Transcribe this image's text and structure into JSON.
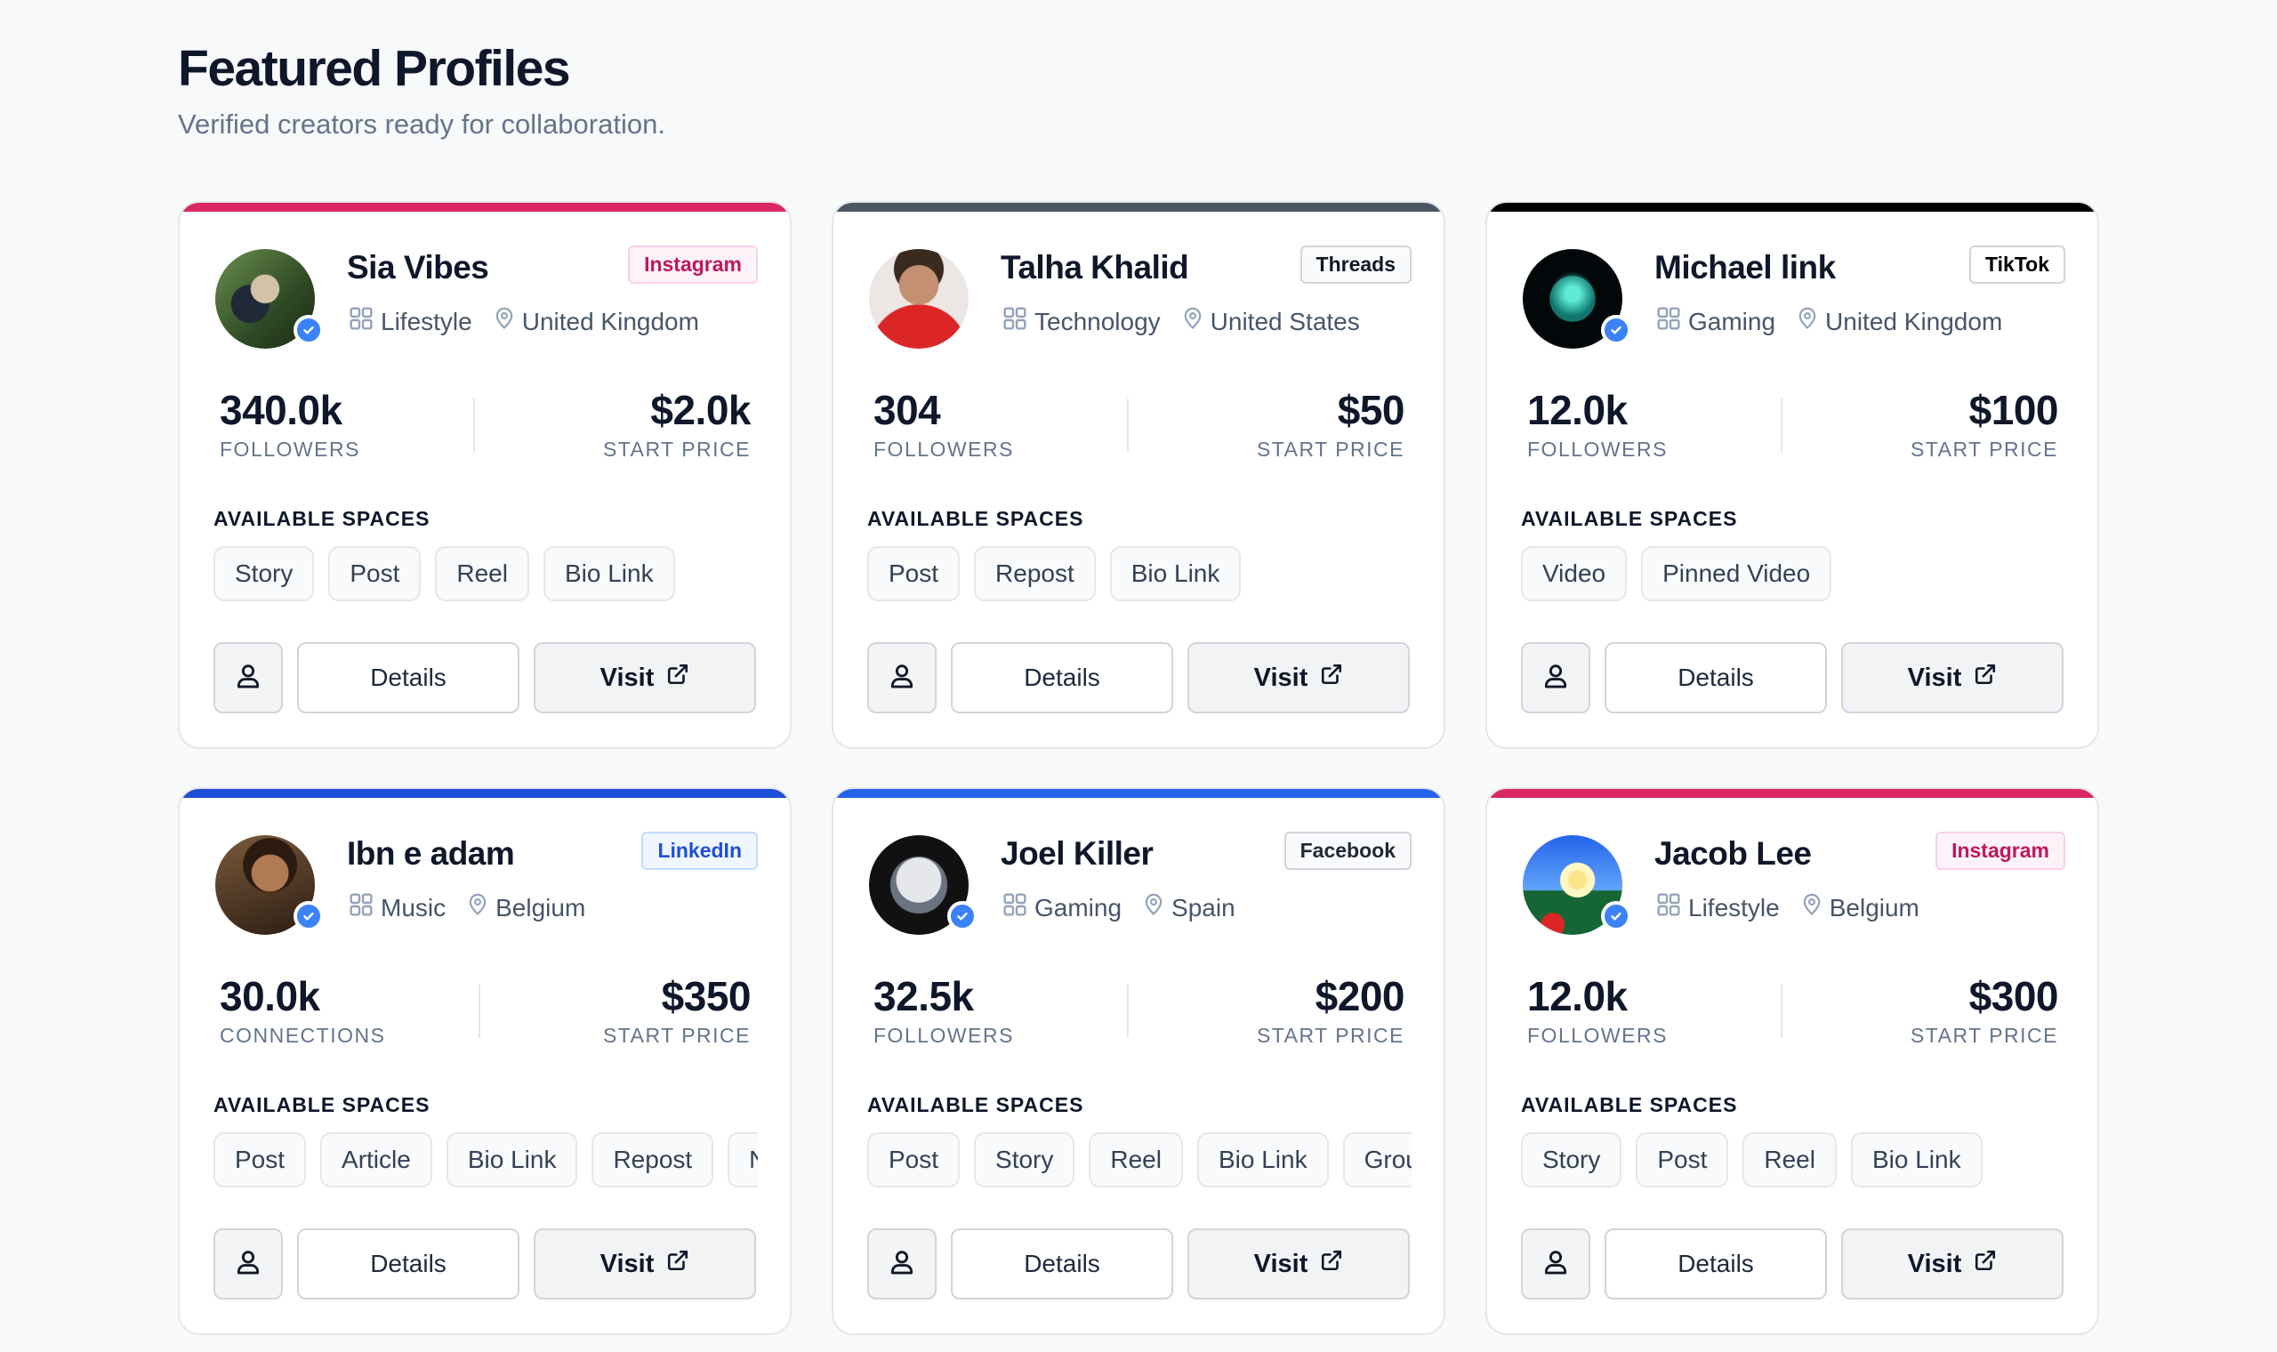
{
  "header": {
    "title": "Featured Profiles",
    "subtitle": "Verified creators ready for collaboration."
  },
  "common": {
    "spaces_title": "AVAILABLE SPACES",
    "price_label": "START PRICE",
    "details_label": "Details",
    "visit_label": "Visit",
    "profile_icon": "user-icon",
    "visit_icon": "external-link-icon",
    "category_icon": "grid-icon",
    "location_icon": "map-pin-icon",
    "verified_icon": "check-icon"
  },
  "cards": [
    {
      "name": "Sia Vibes",
      "platform": "Instagram",
      "accent": "#db2763",
      "category": "Lifestyle",
      "location": "United Kingdom",
      "audience": "340.0k",
      "audience_label": "FOLLOWERS",
      "price": "$2.0k",
      "verified": true,
      "spaces": [
        "Story",
        "Post",
        "Reel",
        "Bio Link"
      ]
    },
    {
      "name": "Talha Khalid",
      "platform": "Threads",
      "accent": "#4b5563",
      "category": "Technology",
      "location": "United States",
      "audience": "304",
      "audience_label": "FOLLOWERS",
      "price": "$50",
      "verified": false,
      "spaces": [
        "Post",
        "Repost",
        "Bio Link"
      ]
    },
    {
      "name": "Michael link",
      "platform": "TikTok",
      "accent": "#000000",
      "category": "Gaming",
      "location": "United Kingdom",
      "audience": "12.0k",
      "audience_label": "FOLLOWERS",
      "price": "$100",
      "verified": true,
      "spaces": [
        "Video",
        "Pinned Video"
      ]
    },
    {
      "name": "Ibn e adam",
      "platform": "LinkedIn",
      "accent": "#1d4ed8",
      "category": "Music",
      "location": "Belgium",
      "audience": "30.0k",
      "audience_label": "CONNECTIONS",
      "price": "$350",
      "verified": true,
      "spaces": [
        "Post",
        "Article",
        "Bio Link",
        "Repost",
        "N"
      ]
    },
    {
      "name": "Joel Killer",
      "platform": "Facebook",
      "accent": "#2563eb",
      "category": "Gaming",
      "location": "Spain",
      "audience": "32.5k",
      "audience_label": "FOLLOWERS",
      "price": "$200",
      "verified": true,
      "spaces": [
        "Post",
        "Story",
        "Reel",
        "Bio Link",
        "Grou"
      ]
    },
    {
      "name": "Jacob Lee",
      "platform": "Instagram",
      "accent": "#db2763",
      "category": "Lifestyle",
      "location": "Belgium",
      "audience": "12.0k",
      "audience_label": "FOLLOWERS",
      "price": "$300",
      "verified": true,
      "spaces": [
        "Story",
        "Post",
        "Reel",
        "Bio Link"
      ]
    }
  ]
}
